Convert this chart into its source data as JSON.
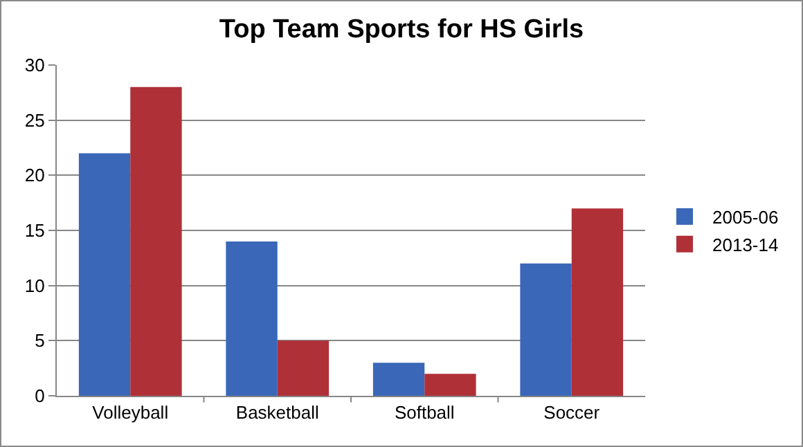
{
  "chart_data": {
    "type": "bar",
    "title": "Top Team Sports for HS Girls",
    "categories": [
      "Volleyball",
      "Basketball",
      "Softball",
      "Soccer"
    ],
    "series": [
      {
        "name": "2005-06",
        "color": "#3a67b8",
        "values": [
          22,
          14,
          3,
          12
        ]
      },
      {
        "name": "2013-14",
        "color": "#b03038",
        "values": [
          28,
          5,
          2,
          17
        ]
      }
    ],
    "ylim": [
      0,
      30
    ],
    "yticks": [
      0,
      5,
      10,
      15,
      20,
      25,
      30
    ],
    "grid": "y",
    "legend": "right"
  }
}
